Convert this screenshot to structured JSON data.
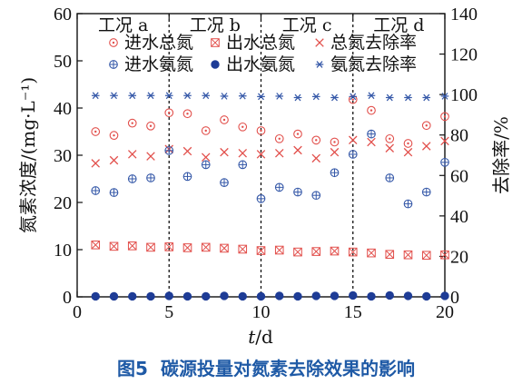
{
  "chart_data": {
    "type": "scatter",
    "caption_number": "图5",
    "caption": "碳源投量对氮素去除效果的影响",
    "xlabel_var": "t",
    "xlabel_unit": "/d",
    "ylabel": "氮素浓度/(mg·L⁻¹)",
    "y2label": "去除率/%",
    "xlim": [
      0,
      20
    ],
    "ylim": [
      0,
      60
    ],
    "y2lim": [
      0,
      140
    ],
    "x_ticks": [
      0,
      5,
      10,
      15,
      20
    ],
    "y_ticks": [
      0,
      10,
      20,
      30,
      40,
      50,
      60
    ],
    "y2_ticks": [
      0,
      20,
      40,
      60,
      80,
      100,
      120,
      140
    ],
    "phase_boundaries": [
      5,
      10,
      15
    ],
    "phases": [
      {
        "label": "工况 a",
        "x_center": 2.5
      },
      {
        "label": "工况 b",
        "x_center": 7.5
      },
      {
        "label": "工况 c",
        "x_center": 12.5
      },
      {
        "label": "工况 d",
        "x_center": 17.5
      }
    ],
    "series": [
      {
        "name": "进水总氮",
        "axis": "left",
        "marker": "circle-dot",
        "color": "#e2504c",
        "x": [
          1,
          2,
          3,
          4,
          5,
          6,
          7,
          8,
          9,
          10,
          11,
          12,
          13,
          14,
          15,
          16,
          17,
          18,
          19,
          20
        ],
        "values": [
          35,
          34.2,
          36.8,
          36.2,
          39,
          38.8,
          35.2,
          37.5,
          36,
          35.2,
          33.5,
          34.5,
          33.2,
          32.8,
          41.8,
          39.5,
          33.5,
          32.5,
          36.3,
          38.2
        ]
      },
      {
        "name": "出水总氮",
        "axis": "left",
        "marker": "boxed-x",
        "color": "#e2504c",
        "x": [
          1,
          2,
          3,
          4,
          5,
          6,
          7,
          8,
          9,
          10,
          11,
          12,
          13,
          14,
          15,
          16,
          17,
          18,
          19,
          20
        ],
        "values": [
          11,
          10.7,
          10.8,
          10.5,
          10.6,
          10.4,
          10.5,
          10.3,
          10.1,
          9.8,
          9.9,
          9.5,
          9.6,
          9.7,
          9.5,
          9.3,
          9.0,
          8.9,
          8.8,
          8.9
        ]
      },
      {
        "name": "总氮去除率",
        "axis": "right",
        "marker": "x",
        "color": "#e2504c",
        "x": [
          1,
          2,
          3,
          4,
          5,
          6,
          7,
          8,
          9,
          10,
          11,
          12,
          13,
          14,
          15,
          16,
          17,
          18,
          19,
          20
        ],
        "values": [
          66,
          67.5,
          70.5,
          69.5,
          73,
          72,
          69,
          71.5,
          71,
          70.5,
          71,
          72.5,
          68.5,
          71.5,
          77.5,
          76.5,
          73.5,
          71.5,
          74.5,
          77
        ]
      },
      {
        "name": "进水氨氮",
        "axis": "left",
        "marker": "circle-plus",
        "color": "#3558a8",
        "x": [
          1,
          2,
          3,
          4,
          5,
          6,
          7,
          8,
          9,
          10,
          11,
          12,
          13,
          14,
          15,
          16,
          17,
          18,
          19,
          20
        ],
        "values": [
          22.5,
          22.1,
          25,
          25.2,
          31,
          25.5,
          28,
          24.2,
          28,
          20.8,
          23.2,
          22.2,
          21.5,
          26.3,
          30.2,
          34.5,
          25.2,
          19.7,
          22.2,
          28.5
        ]
      },
      {
        "name": "出水氨氮",
        "axis": "left",
        "marker": "filled-circle",
        "color": "#1e3c96",
        "x": [
          1,
          2,
          3,
          4,
          5,
          6,
          7,
          8,
          9,
          10,
          11,
          12,
          13,
          14,
          15,
          16,
          17,
          18,
          19,
          20
        ],
        "values": [
          0.1,
          0.1,
          0.1,
          0.1,
          0.2,
          0.1,
          0.1,
          0.2,
          0.1,
          0.1,
          0.2,
          0.1,
          0.2,
          0.2,
          0.3,
          0.1,
          0.3,
          0.2,
          0.1,
          0.2
        ]
      },
      {
        "name": "氨氮去除率",
        "axis": "right",
        "marker": "asterisk",
        "color": "#3558a8",
        "x": [
          1,
          2,
          3,
          4,
          5,
          6,
          7,
          8,
          9,
          10,
          11,
          12,
          13,
          14,
          15,
          16,
          17,
          18,
          19,
          20
        ],
        "values": [
          99.5,
          99.5,
          99.5,
          99.5,
          99.5,
          99.5,
          99.5,
          99.2,
          99.3,
          99,
          99.2,
          98.5,
          99,
          98.5,
          99,
          99.5,
          98.5,
          98.5,
          98.5,
          99.2
        ]
      }
    ],
    "legend_position": "top"
  }
}
